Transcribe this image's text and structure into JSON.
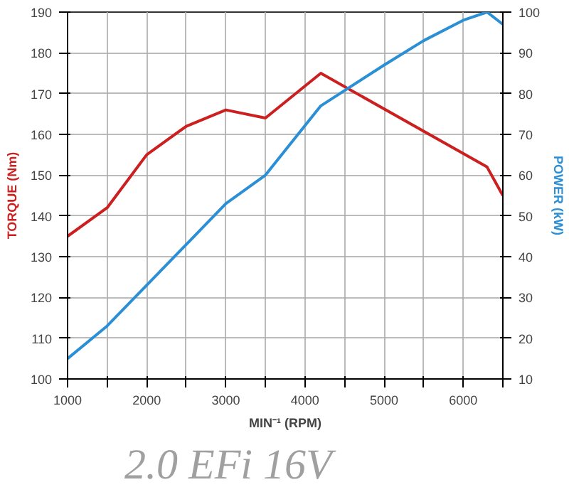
{
  "chart_data": {
    "type": "line",
    "title": "2.0 EFi 16V",
    "xlabel": "MIN⁻¹ (RPM)",
    "ylabel": "TORQUE (Nm)",
    "y2label": "POWER (kW)",
    "xlim": [
      1000,
      6500
    ],
    "xticks": [
      1000,
      {
        "value": 1500,
        "label": null
      },
      2000,
      {
        "value": 2500,
        "label": null
      },
      3000,
      {
        "value": 3500,
        "label": null
      },
      4000,
      {
        "value": 4500,
        "label": null
      },
      5000,
      {
        "value": 5500,
        "label": null
      },
      6000,
      {
        "value": 6500,
        "label": null
      }
    ],
    "ylim": [
      100,
      190
    ],
    "yticks": [
      100,
      110,
      120,
      130,
      140,
      150,
      160,
      170,
      180,
      190
    ],
    "y2lim": [
      10,
      100
    ],
    "y2ticks": [
      10,
      20,
      30,
      40,
      50,
      60,
      70,
      80,
      90,
      100
    ],
    "grid": true,
    "series": [
      {
        "color": "#cc1f1f",
        "x": [
          1000,
          1500,
          2000,
          2500,
          3000,
          3500,
          4200,
          6300,
          6500
        ],
        "values": [
          135,
          142,
          155,
          162,
          166,
          164,
          175,
          152,
          145
        ]
      },
      {
        "color": "#2b8fd6",
        "axis": "y2",
        "x": [
          1000,
          1500,
          2000,
          2500,
          3000,
          3500,
          4200,
          5000,
          5500,
          6000,
          6300,
          6500
        ],
        "values": [
          15,
          23,
          33,
          43,
          53,
          60,
          77,
          87,
          93,
          98,
          100,
          97
        ]
      }
    ]
  }
}
